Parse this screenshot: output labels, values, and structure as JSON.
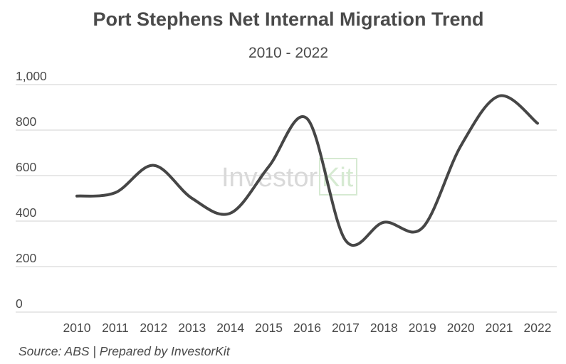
{
  "colors": {
    "line": "#464646",
    "grid": "#d9d9d9",
    "text": "#4a4a4a",
    "watermark_grey": "#d9d9d9",
    "watermark_green": "#d6ead2"
  },
  "watermark": {
    "part1": "Investor",
    "part2": "Kit"
  },
  "source": "Source: ABS | Prepared by InvestorKit",
  "chart_data": {
    "type": "line",
    "title": "Port Stephens Net Internal Migration Trend",
    "subtitle": "2010 - 2022",
    "xlabel": "",
    "ylabel": "",
    "categories": [
      "2010",
      "2011",
      "2012",
      "2013",
      "2014",
      "2015",
      "2016",
      "2017",
      "2018",
      "2019",
      "2020",
      "2021",
      "2022"
    ],
    "yticks": [
      "0",
      "200",
      "400",
      "600",
      "800",
      "1,000"
    ],
    "ylim": [
      0,
      1000
    ],
    "grid": true,
    "smooth": true,
    "series": [
      {
        "values": [
          510,
          525,
          645,
          500,
          435,
          640,
          850,
          315,
          395,
          370,
          730,
          950,
          830
        ]
      }
    ]
  }
}
